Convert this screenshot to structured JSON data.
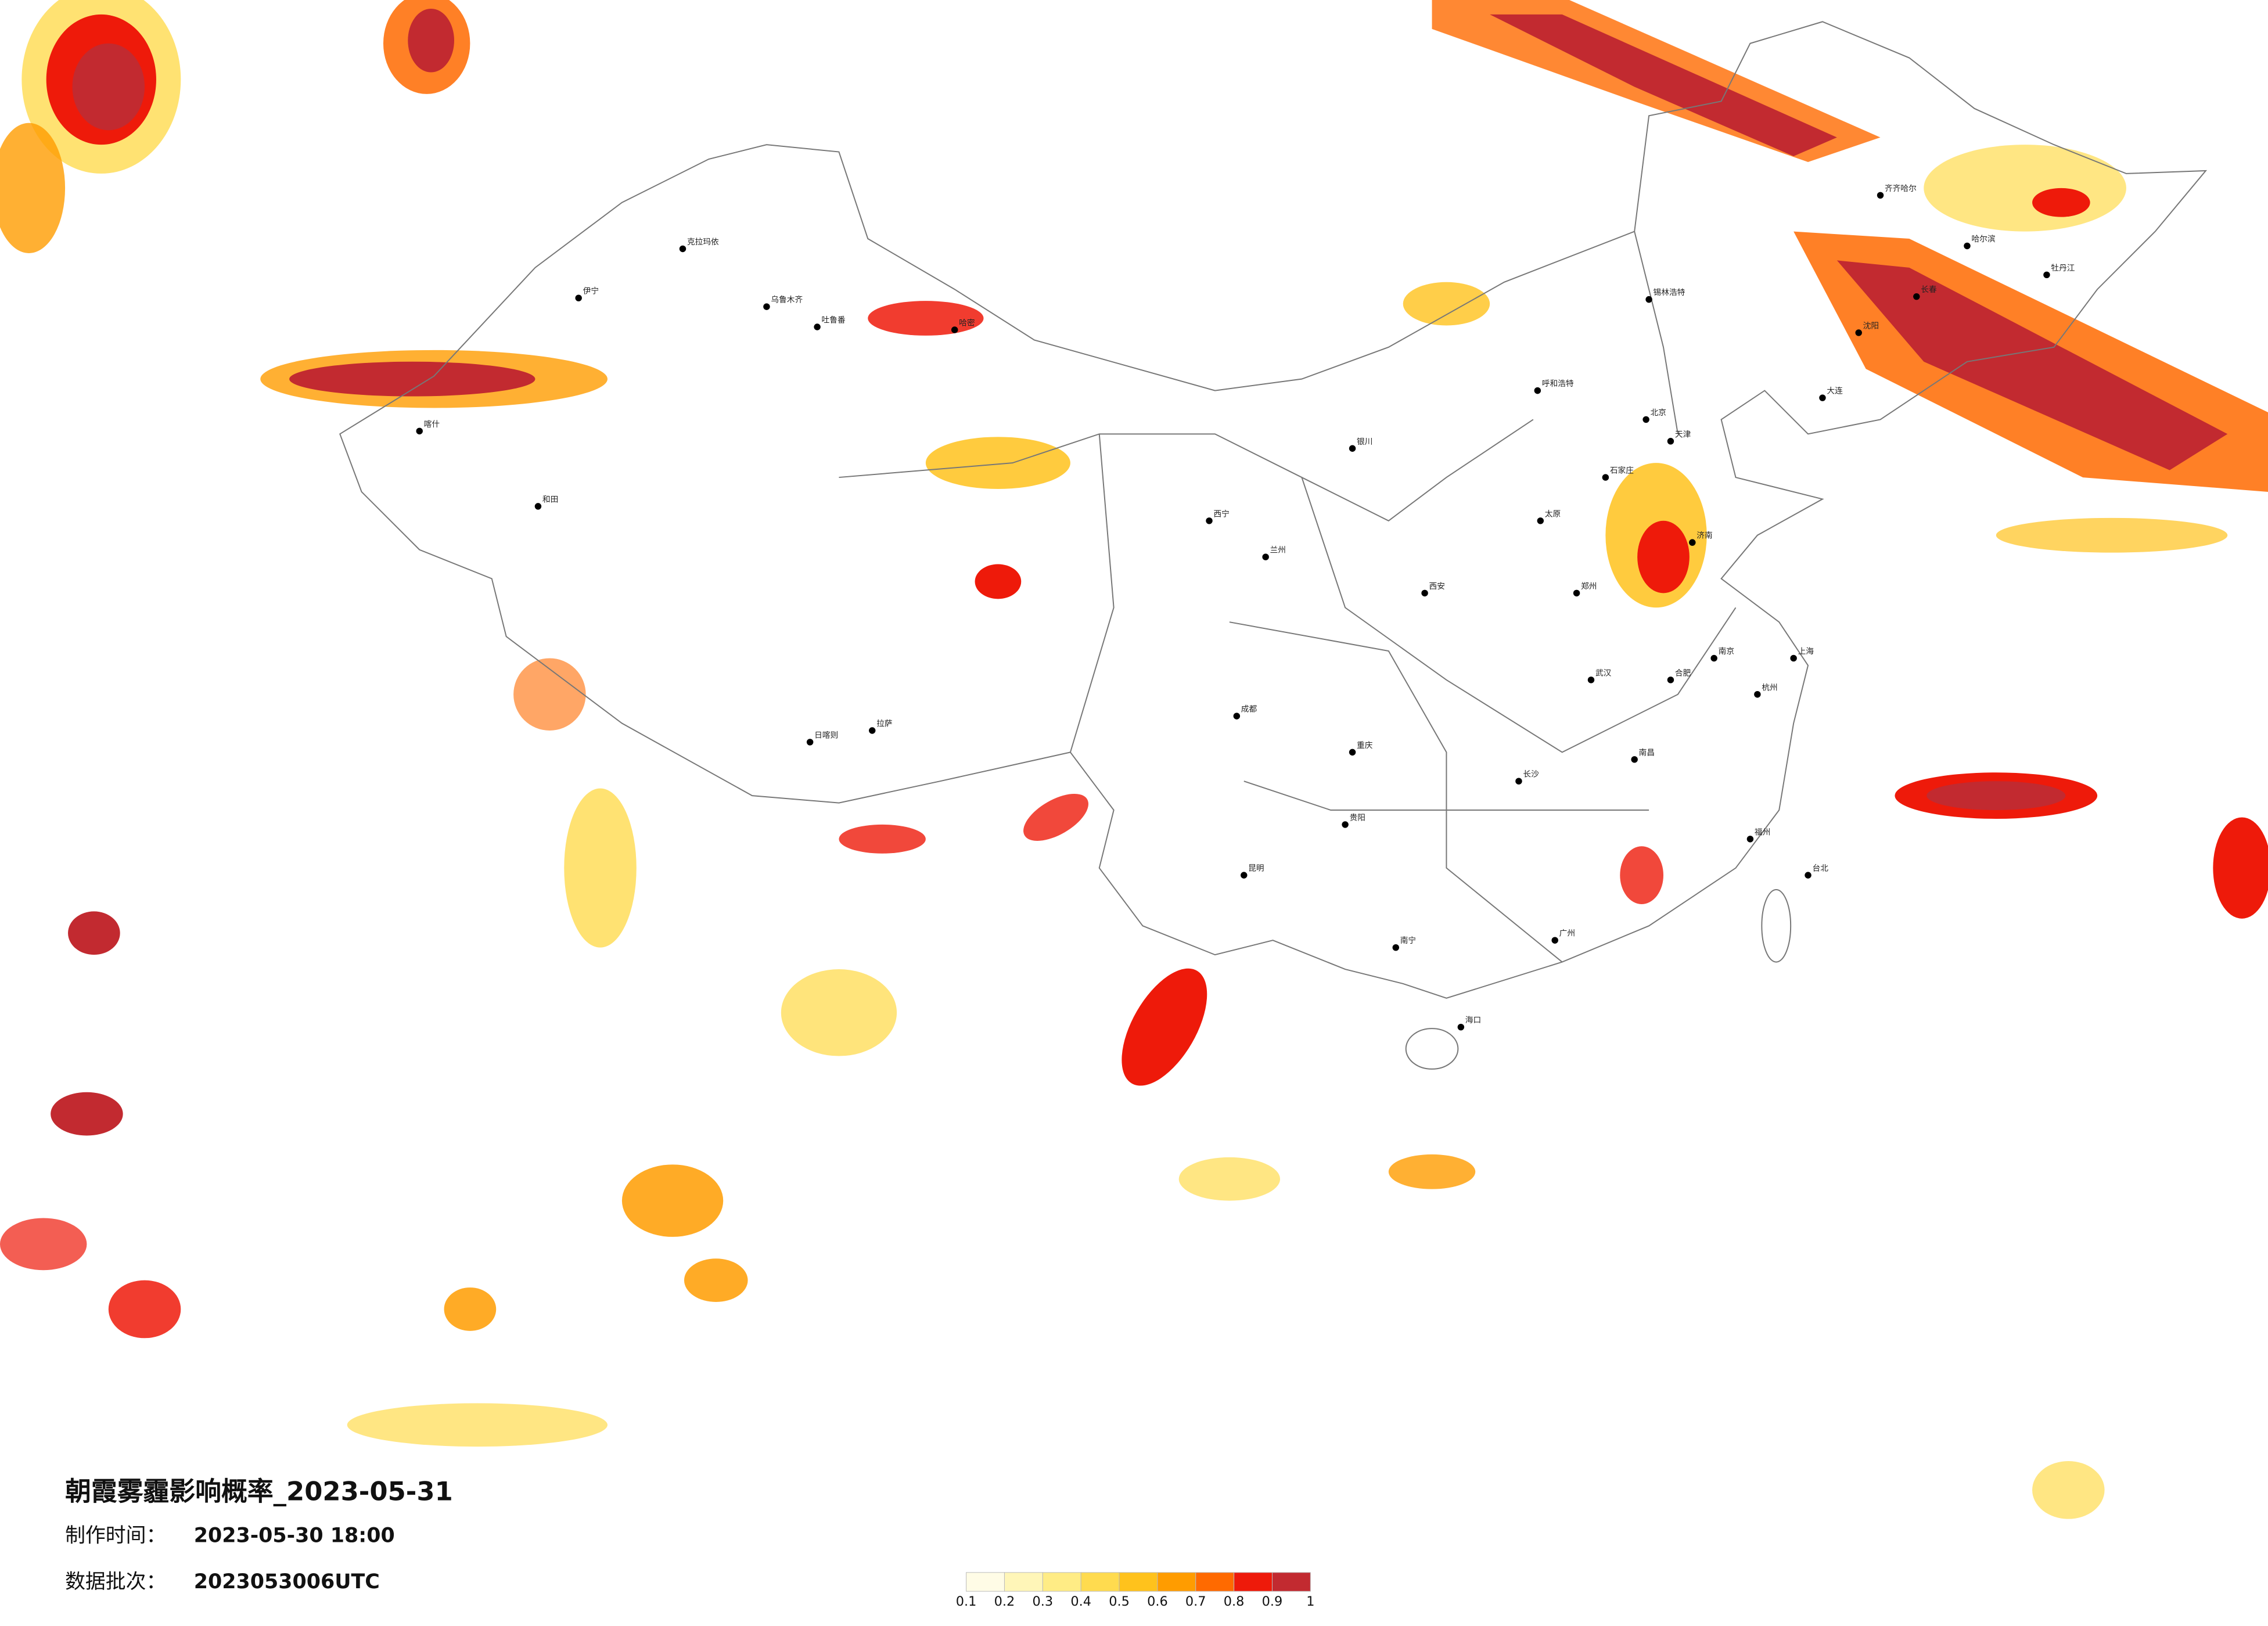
{
  "title": "朝霞雾霾影响概率_2023-05-31",
  "made_label": "制作时间：",
  "made_time": "2023-05-30 18:00",
  "batch_label": "数据批次：",
  "batch": "2023053006UTC",
  "colorbar": {
    "ticks": [
      0.1,
      0.2,
      0.3,
      0.4,
      0.5,
      0.6,
      0.7,
      0.8,
      0.9,
      1
    ],
    "colors": [
      "#fffce6",
      "#fff6b8",
      "#ffec85",
      "#ffdb4f",
      "#ffc21c",
      "#ff9c00",
      "#ff6a00",
      "#ee1a0a",
      "#c22a30"
    ]
  },
  "cities": [
    "克拉玛依",
    "乌鲁木齐",
    "吐鲁番",
    "哈密",
    "伊宁",
    "喀什",
    "和田",
    "拉萨",
    "日喀则",
    "西宁",
    "兰州",
    "银川",
    "呼和浩特",
    "北京",
    "天津",
    "石家庄",
    "太原",
    "济南",
    "郑州",
    "西安",
    "成都",
    "重庆",
    "贵阳",
    "昆明",
    "南宁",
    "广州",
    "长沙",
    "武汉",
    "南昌",
    "杭州",
    "上海",
    "南京",
    "合肥",
    "福州",
    "台北",
    "海口",
    "沈阳",
    "长春",
    "哈尔滨",
    "齐齐哈尔",
    "锡林浩特",
    "牡丹江",
    "大连"
  ]
}
